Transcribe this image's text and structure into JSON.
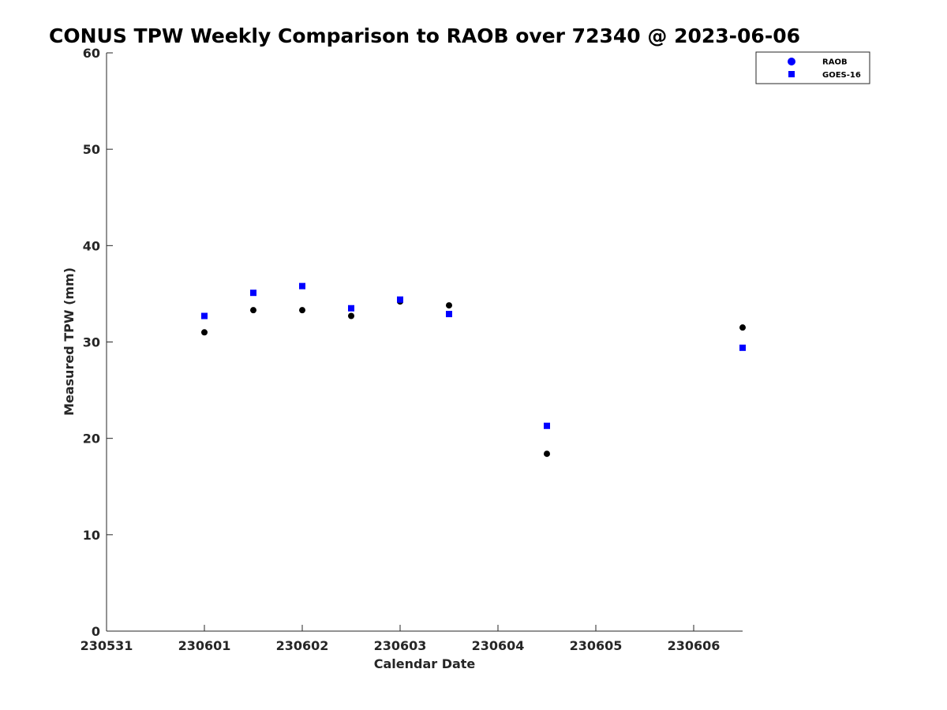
{
  "chart_data": {
    "type": "scatter",
    "title": "CONUS TPW Weekly Comparison to RAOB over 72340 @ 2023-06-06",
    "xlabel": "Calendar Date",
    "ylabel": "Measured TPW (mm)",
    "xlim": [
      0,
      6.5
    ],
    "ylim": [
      0,
      60
    ],
    "x_ticks": [
      {
        "value": 0,
        "label": "230531"
      },
      {
        "value": 1,
        "label": "230601"
      },
      {
        "value": 2,
        "label": "230602"
      },
      {
        "value": 3,
        "label": "230603"
      },
      {
        "value": 4,
        "label": "230604"
      },
      {
        "value": 5,
        "label": "230605"
      },
      {
        "value": 6,
        "label": "230606"
      }
    ],
    "y_ticks": [
      0,
      10,
      20,
      30,
      40,
      50,
      60
    ],
    "grid": false,
    "legend_position": "top-right",
    "series": [
      {
        "name": "RAOB",
        "marker": "circle",
        "color": "#000000",
        "legend_color": "#0000ff",
        "points": [
          {
            "x": 1.0,
            "y": 31.0
          },
          {
            "x": 1.5,
            "y": 33.3
          },
          {
            "x": 2.0,
            "y": 33.3
          },
          {
            "x": 2.5,
            "y": 32.7
          },
          {
            "x": 3.0,
            "y": 34.2
          },
          {
            "x": 3.5,
            "y": 33.8
          },
          {
            "x": 4.5,
            "y": 18.4
          },
          {
            "x": 6.5,
            "y": 31.5
          }
        ]
      },
      {
        "name": "GOES-16",
        "marker": "square",
        "color": "#0000ff",
        "legend_color": "#0000ff",
        "points": [
          {
            "x": 1.0,
            "y": 32.7
          },
          {
            "x": 1.5,
            "y": 35.1
          },
          {
            "x": 2.0,
            "y": 35.8
          },
          {
            "x": 2.5,
            "y": 33.5
          },
          {
            "x": 3.0,
            "y": 34.4
          },
          {
            "x": 3.5,
            "y": 32.9
          },
          {
            "x": 4.5,
            "y": 21.3
          },
          {
            "x": 6.5,
            "y": 29.4
          }
        ]
      }
    ]
  }
}
